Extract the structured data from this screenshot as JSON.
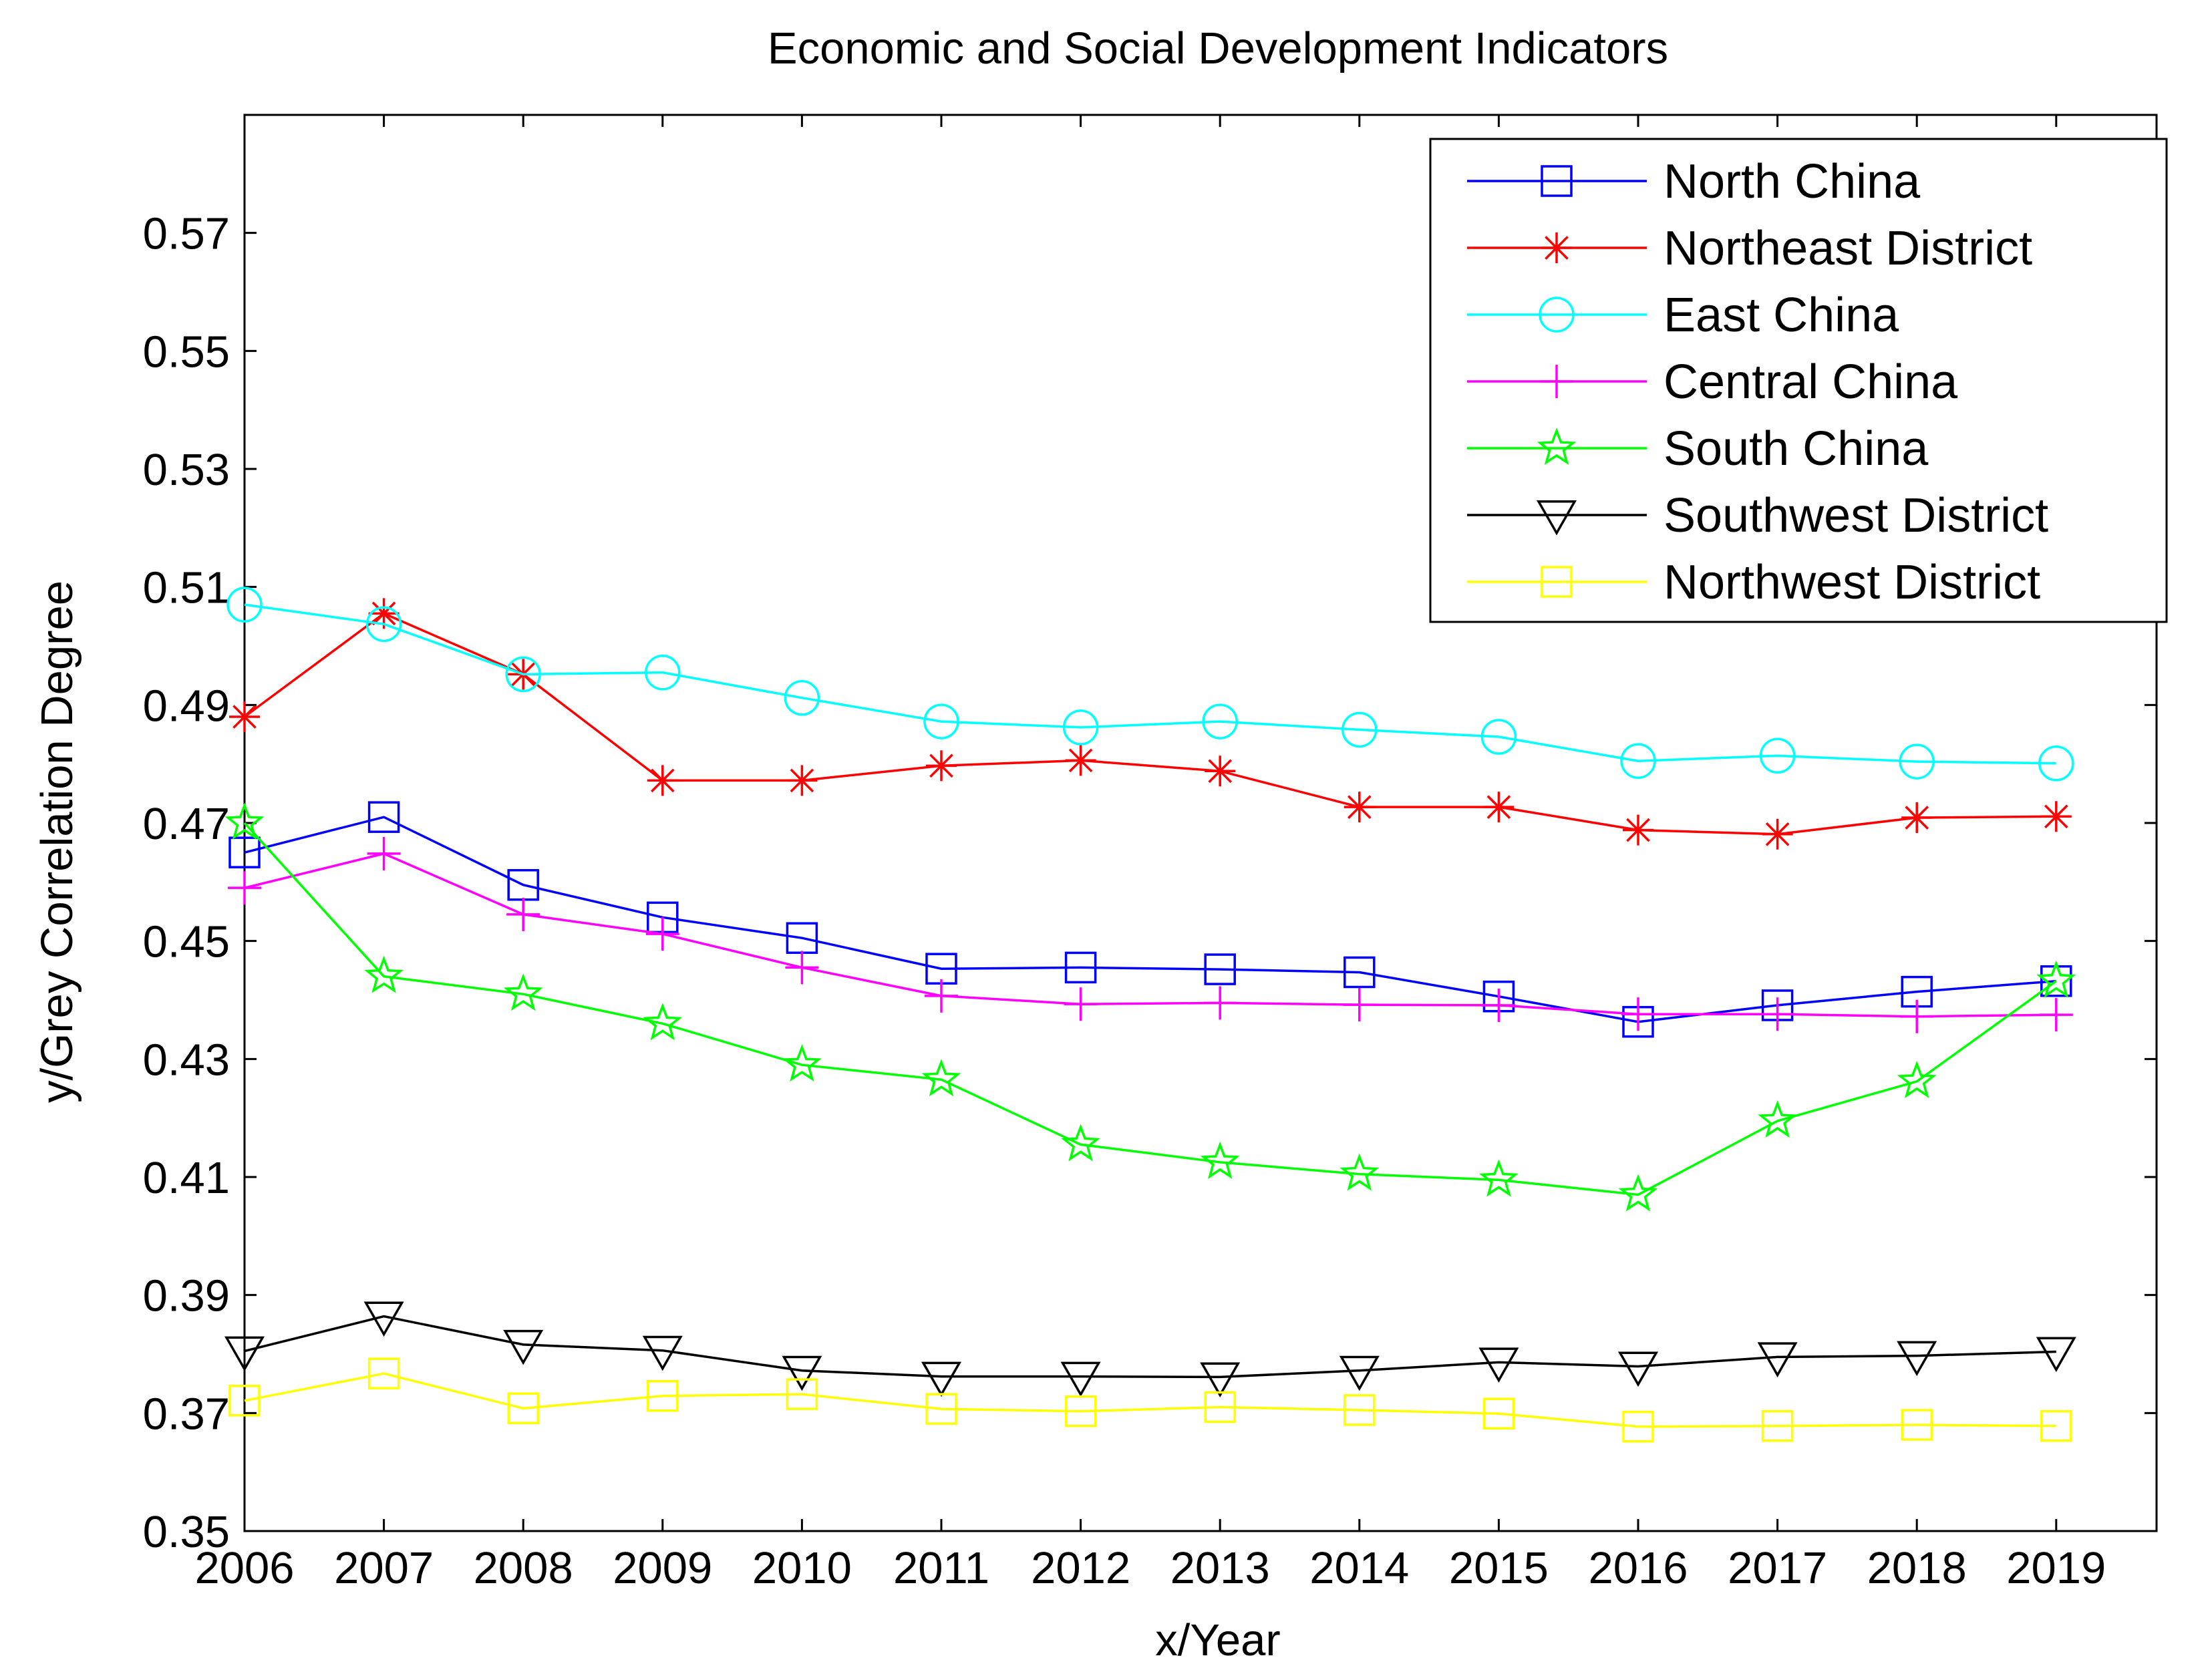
{
  "chart_data": {
    "type": "line",
    "title": "Economic and Social Development Indicators",
    "xlabel": "x/Year",
    "ylabel": "y/Grey Correlation Degree",
    "x": [
      2006,
      2007,
      2008,
      2009,
      2010,
      2011,
      2012,
      2013,
      2014,
      2015,
      2016,
      2017,
      2018,
      2019
    ],
    "x_tick_labels": [
      "2006",
      "2007",
      "2008",
      "2009",
      "2010",
      "2011",
      "2012",
      "2013",
      "2014",
      "2015",
      "2016",
      "2017",
      "2018",
      "2019"
    ],
    "ylim": [
      0.35,
      0.59
    ],
    "y_ticks": [
      0.35,
      0.37,
      0.39,
      0.41,
      0.43,
      0.45,
      0.47,
      0.49,
      0.51,
      0.53,
      0.55,
      0.57
    ],
    "y_tick_labels": [
      "0.35",
      "0.37",
      "0.39",
      "0.41",
      "0.43",
      "0.45",
      "0.47",
      "0.49",
      "0.51",
      "0.53",
      "0.55",
      "0.57"
    ],
    "grid": false,
    "legend_position": "top-right",
    "series": [
      {
        "name": "North China",
        "color": "#0000ff",
        "marker": "square",
        "values": [
          0.465,
          0.471,
          0.4595,
          0.454,
          0.4505,
          0.4453,
          0.4455,
          0.4452,
          0.4447,
          0.4406,
          0.4363,
          0.4391,
          0.4414,
          0.4432
        ]
      },
      {
        "name": "Northeast District",
        "color": "#ff0000",
        "marker": "star",
        "values": [
          0.488,
          0.5055,
          0.4952,
          0.4772,
          0.4772,
          0.4797,
          0.4806,
          0.4788,
          0.4727,
          0.4727,
          0.4688,
          0.4681,
          0.4709,
          0.4711
        ]
      },
      {
        "name": "East China",
        "color": "#00ffff",
        "marker": "circle",
        "values": [
          0.507,
          0.5037,
          0.4952,
          0.4955,
          0.4912,
          0.4872,
          0.4862,
          0.4872,
          0.4858,
          0.4846,
          0.4805,
          0.4814,
          0.4804,
          0.4801
        ]
      },
      {
        "name": "Central China",
        "color": "#ff00ff",
        "marker": "plus",
        "values": [
          0.459,
          0.4648,
          0.4545,
          0.4512,
          0.4455,
          0.4407,
          0.4393,
          0.4395,
          0.4392,
          0.4391,
          0.4376,
          0.4376,
          0.4372,
          0.4375
        ]
      },
      {
        "name": "South China",
        "color": "#00ff00",
        "marker": "pentagram",
        "values": [
          0.47,
          0.444,
          0.441,
          0.436,
          0.429,
          0.4265,
          0.4155,
          0.4125,
          0.4105,
          0.4095,
          0.407,
          0.4195,
          0.4262,
          0.4432
        ]
      },
      {
        "name": "Southwest District",
        "color": "#000000",
        "marker": "triangle-down",
        "values": [
          0.3805,
          0.3864,
          0.3816,
          0.3806,
          0.3772,
          0.3762,
          0.3762,
          0.3761,
          0.3772,
          0.3786,
          0.3779,
          0.3795,
          0.3797,
          0.3804
        ]
      },
      {
        "name": "Northwest District",
        "color": "#ffff00",
        "marker": "square",
        "values": [
          0.3721,
          0.3767,
          0.3708,
          0.3729,
          0.3732,
          0.3707,
          0.3703,
          0.371,
          0.3705,
          0.3699,
          0.3677,
          0.3678,
          0.368,
          0.3678
        ]
      }
    ]
  }
}
